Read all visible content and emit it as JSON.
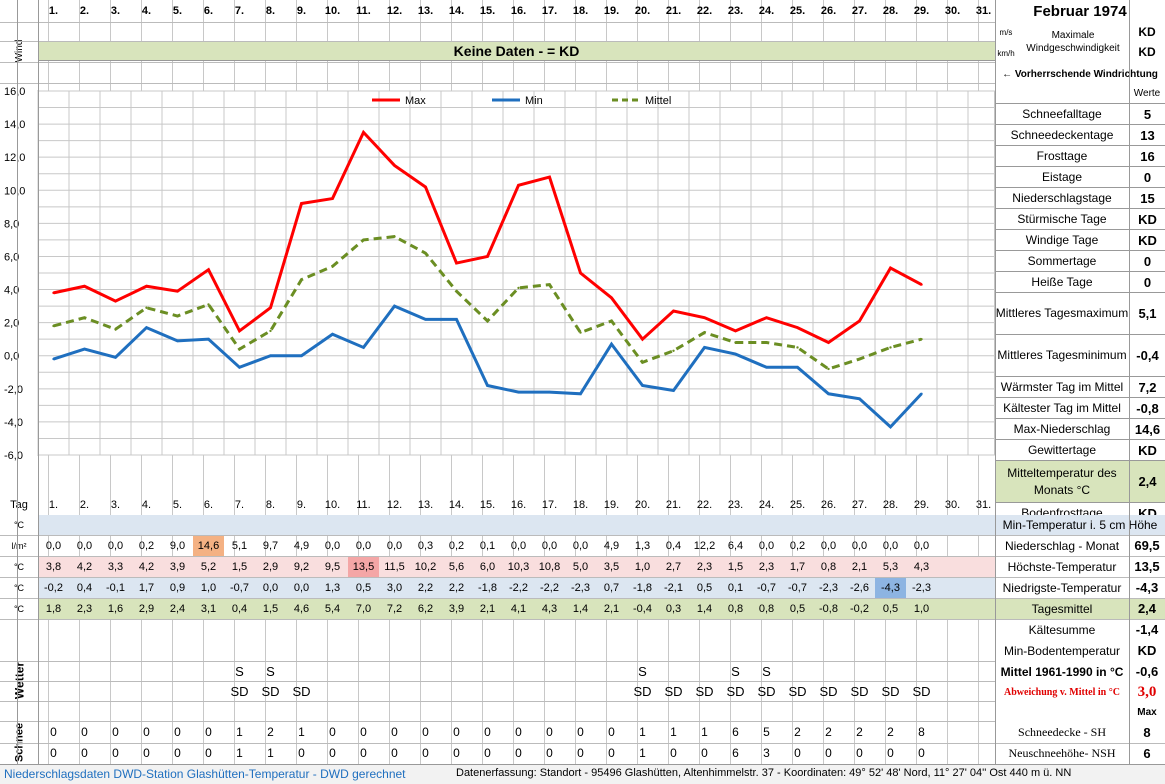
{
  "month_title": "Februar 1974",
  "days": [
    "1.",
    "2.",
    "3.",
    "4.",
    "5.",
    "6.",
    "7.",
    "8.",
    "9.",
    "10.",
    "11.",
    "12.",
    "13.",
    "14.",
    "15.",
    "16.",
    "17.",
    "18.",
    "19.",
    "20.",
    "21.",
    "22.",
    "23.",
    "24.",
    "25.",
    "26.",
    "27.",
    "28.",
    "29.",
    "30.",
    "31."
  ],
  "wind": {
    "label": "Wind",
    "unit_ms": "m/s",
    "unit_kmh": "km/h",
    "no_data": "Keine Daten -  = KD",
    "max_label": "Maximale Windgeschwindigkeit",
    "max_ms": "KD",
    "max_kmh": "KD",
    "direction": "← Vorherrschende Windrichtung"
  },
  "chart_data": {
    "type": "line",
    "x": [
      1,
      2,
      3,
      4,
      5,
      6,
      7,
      8,
      9,
      10,
      11,
      12,
      13,
      14,
      15,
      16,
      17,
      18,
      19,
      20,
      21,
      22,
      23,
      24,
      25,
      26,
      27,
      28,
      29
    ],
    "ylim": [
      -6,
      16
    ],
    "yticks": [
      "16,0",
      "14,0",
      "12,0",
      "10,0",
      "8,0",
      "6,0",
      "4,0",
      "2,0",
      "0,0",
      "-2,0",
      "-4,0",
      "-6,0"
    ],
    "grid": true,
    "legend_position": "top",
    "series": [
      {
        "name": "Max",
        "color": "#ff0000",
        "dash": false,
        "values": [
          3.8,
          4.2,
          3.3,
          4.2,
          3.9,
          5.2,
          1.5,
          2.9,
          9.2,
          9.5,
          13.5,
          11.5,
          10.2,
          5.6,
          6.0,
          10.3,
          10.8,
          5.0,
          3.5,
          1.0,
          2.7,
          2.3,
          1.5,
          2.3,
          1.7,
          0.8,
          2.1,
          5.3,
          4.3
        ]
      },
      {
        "name": "Min",
        "color": "#1f6fbf",
        "dash": false,
        "values": [
          -0.2,
          0.4,
          -0.1,
          1.7,
          0.9,
          1.0,
          -0.7,
          0.0,
          0.0,
          1.3,
          0.5,
          3.0,
          2.2,
          2.2,
          -1.8,
          -2.2,
          -2.2,
          -2.3,
          0.7,
          -1.8,
          -2.1,
          0.5,
          0.1,
          -0.7,
          -0.7,
          -2.3,
          -2.6,
          -4.3,
          -2.3
        ]
      },
      {
        "name": "Mittel",
        "color": "#6b8e23",
        "dash": true,
        "values": [
          1.8,
          2.3,
          1.6,
          2.9,
          2.4,
          3.1,
          0.4,
          1.5,
          4.6,
          5.4,
          7.0,
          7.2,
          6.2,
          3.9,
          2.1,
          4.1,
          4.3,
          1.4,
          2.1,
          -0.4,
          0.3,
          1.4,
          0.8,
          0.8,
          0.5,
          -0.8,
          -0.2,
          0.5,
          1.0
        ]
      }
    ]
  },
  "values_header": "Werte",
  "stats": [
    {
      "label": "Schneefalltage",
      "value": "5"
    },
    {
      "label": "Schneedeckentage",
      "value": "13"
    },
    {
      "label": "Frosttage",
      "value": "16"
    },
    {
      "label": "Eistage",
      "value": "0"
    },
    {
      "label": "Niederschlagstage",
      "value": "15"
    },
    {
      "label": "Stürmische Tage",
      "value": "KD"
    },
    {
      "label": "Windige Tage",
      "value": "KD"
    },
    {
      "label": "Sommertage",
      "value": "0"
    },
    {
      "label": "Heiße Tage",
      "value": "0"
    },
    {
      "label": "Mittleres Tagesmaximum",
      "value": "5,1"
    },
    {
      "label": "Mittleres Tagesminimum",
      "value": "-0,4"
    },
    {
      "label": "Wärmster Tag im Mittel",
      "value": "7,2"
    },
    {
      "label": "Kältester Tag im Mittel",
      "value": "-0,8"
    },
    {
      "label": "Max-Niederschlag",
      "value": "14,6"
    },
    {
      "label": "Gewittertage",
      "value": "KD"
    },
    {
      "label": "Mitteltemperatur des Monats °C",
      "value": "2,4"
    },
    {
      "label": "Bodenfrosttage",
      "value": "KD"
    }
  ],
  "table": {
    "tag_label": "Tag",
    "row_units": [
      "°C",
      "l/m²",
      "°C",
      "°C",
      "°C"
    ],
    "min5_label": "Min-Temperatur i. 5 cm Höhe",
    "rows": [
      {
        "label": "Niederschlag - Monat",
        "total": "69,5",
        "values": [
          "0,0",
          "0,0",
          "0,0",
          "0,2",
          "9,0",
          "14,6",
          "5,1",
          "9,7",
          "4,9",
          "0,0",
          "0,0",
          "0,0",
          "0,3",
          "0,2",
          "0,1",
          "0,0",
          "0,0",
          "0,0",
          "4,9",
          "1,3",
          "0,4",
          "12,2",
          "6,4",
          "0,0",
          "0,2",
          "0,0",
          "0,0",
          "0,0",
          "0,0"
        ]
      },
      {
        "label": "Höchste-Temperatur",
        "total": "13,5",
        "values": [
          "3,8",
          "4,2",
          "3,3",
          "4,2",
          "3,9",
          "5,2",
          "1,5",
          "2,9",
          "9,2",
          "9,5",
          "13,5",
          "11,5",
          "10,2",
          "5,6",
          "6,0",
          "10,3",
          "10,8",
          "5,0",
          "3,5",
          "1,0",
          "2,7",
          "2,3",
          "1,5",
          "2,3",
          "1,7",
          "0,8",
          "2,1",
          "5,3",
          "4,3"
        ]
      },
      {
        "label": "Niedrigste-Temperatur",
        "total": "-4,3",
        "values": [
          "-0,2",
          "0,4",
          "-0,1",
          "1,7",
          "0,9",
          "1,0",
          "-0,7",
          "0,0",
          "0,0",
          "1,3",
          "0,5",
          "3,0",
          "2,2",
          "2,2",
          "-1,8",
          "-2,2",
          "-2,2",
          "-2,3",
          "0,7",
          "-1,8",
          "-2,1",
          "0,5",
          "0,1",
          "-0,7",
          "-0,7",
          "-2,3",
          "-2,6",
          "-4,3",
          "-2,3"
        ]
      },
      {
        "label": "Tagesmittel",
        "total": "2,4",
        "values": [
          "1,8",
          "2,3",
          "1,6",
          "2,9",
          "2,4",
          "3,1",
          "0,4",
          "1,5",
          "4,6",
          "5,4",
          "7,0",
          "7,2",
          "6,2",
          "3,9",
          "2,1",
          "4,1",
          "4,3",
          "1,4",
          "2,1",
          "-0,4",
          "0,3",
          "1,4",
          "0,8",
          "0,8",
          "0,5",
          "-0,8",
          "-0,2",
          "0,5",
          "1,0"
        ]
      }
    ]
  },
  "lower_stats": [
    {
      "label": "Kältesumme",
      "value": "-1,4"
    },
    {
      "label": "Min-Bodentemperatur",
      "value": "KD"
    },
    {
      "label": "Mittel 1961-1990 in °C",
      "value": "-0,6"
    },
    {
      "label": "Abweichung v. Mittel in °C",
      "value": "3,0"
    }
  ],
  "max_label": "Max",
  "wetter": {
    "label": "Wetter",
    "row1": {
      "7": "S",
      "8": "S",
      "20": "S",
      "23": "S",
      "24": "S"
    },
    "row2": {
      "7": "SD",
      "8": "SD",
      "9": "SD",
      "20": "SD",
      "21": "SD",
      "22": "SD",
      "23": "SD",
      "24": "SD",
      "25": "SD",
      "26": "SD",
      "27": "SD",
      "28": "SD",
      "29": "SD"
    }
  },
  "schnee": {
    "label": "Schnee",
    "sh_label": "Schneedecke -   SH",
    "sh_max": "8",
    "nsh_label": "Neuschneehöhe- NSH",
    "nsh_max": "6",
    "sh": [
      "0",
      "0",
      "0",
      "0",
      "0",
      "0",
      "1",
      "2",
      "1",
      "0",
      "0",
      "0",
      "0",
      "0",
      "0",
      "0",
      "0",
      "0",
      "0",
      "1",
      "1",
      "1",
      "6",
      "5",
      "2",
      "2",
      "2",
      "2",
      "8"
    ],
    "nsh": [
      "0",
      "0",
      "0",
      "0",
      "0",
      "0",
      "1",
      "1",
      "0",
      "0",
      "0",
      "0",
      "0",
      "0",
      "0",
      "0",
      "0",
      "0",
      "0",
      "1",
      "0",
      "0",
      "6",
      "3",
      "0",
      "0",
      "0",
      "0",
      "0"
    ]
  },
  "footer": {
    "left": "Niederschlagsdaten DWD-Station Glashütten-Temperatur -  DWD gerechnet",
    "right": "Datenerfassung: Standort -  95496  Glashütten, Altenhimmelstr. 37 - Koordinaten:  49° 52' 48' Nord,   11° 27' 04'' Ost   440 m ü. NN"
  }
}
